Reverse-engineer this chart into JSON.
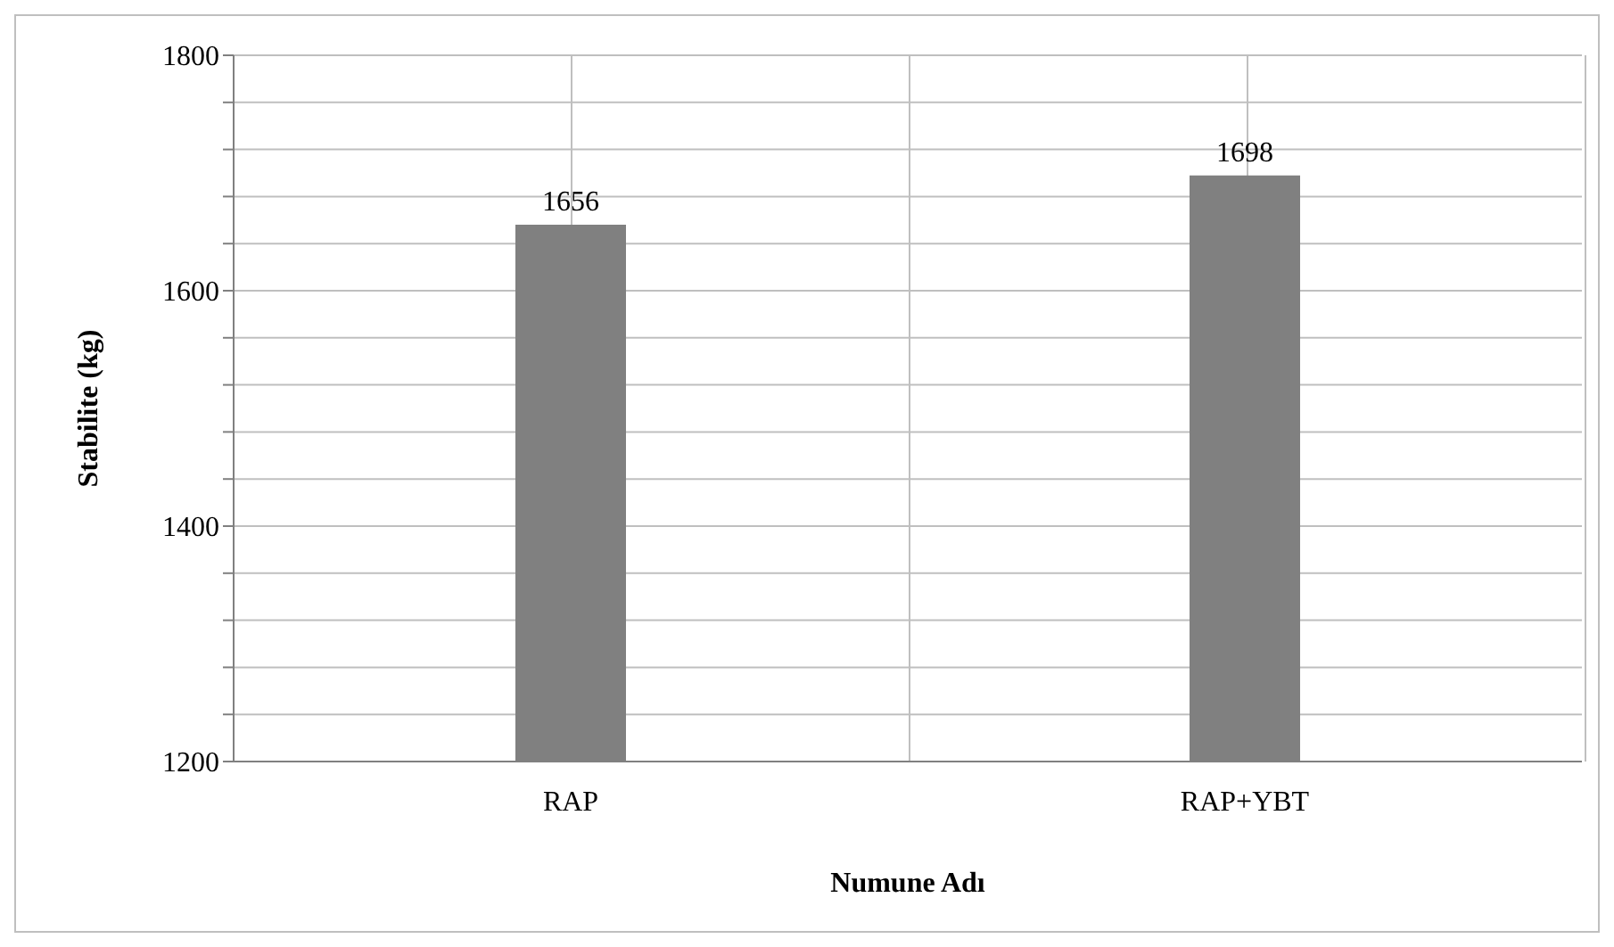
{
  "chart_data": {
    "type": "bar",
    "xlabel": "Numune Adı",
    "ylabel": "Stabilite (kg)",
    "categories": [
      "RAP",
      "RAP+YBT"
    ],
    "values": [
      1656,
      1698
    ],
    "color": "#808080",
    "data_labels": true,
    "ylim": [
      1200,
      1800
    ],
    "yticks": [
      1200,
      {
        "value": 1240,
        "label": null
      },
      {
        "value": 1280,
        "label": null
      },
      {
        "value": 1320,
        "label": null
      },
      {
        "value": 1360,
        "label": null
      },
      1400,
      {
        "value": 1440,
        "label": null
      },
      {
        "value": 1480,
        "label": null
      },
      {
        "value": 1520,
        "label": null
      },
      {
        "value": 1560,
        "label": null
      },
      1600,
      {
        "value": 1640,
        "label": null
      },
      {
        "value": 1680,
        "label": null
      },
      {
        "value": 1720,
        "label": null
      },
      {
        "value": 1760,
        "label": null
      },
      1800
    ],
    "grid": true,
    "legend": false
  }
}
